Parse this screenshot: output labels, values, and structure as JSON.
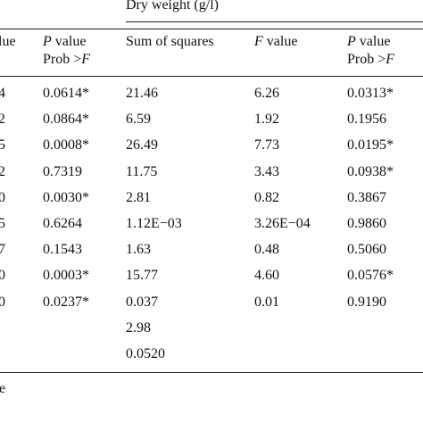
{
  "group_header": "Dry weight (g/l)",
  "columns": {
    "c0": {
      "l1": "lue"
    },
    "c1": {
      "l1_italic": "P",
      "l1_rest": " value",
      "l2": "Prob >",
      "l2_italic": "F"
    },
    "c2": {
      "l1": "Sum of squares"
    },
    "c3": {
      "l1_italic": "F",
      "l1_rest": " value"
    },
    "c4": {
      "l1_italic": "P",
      "l1_rest": " value",
      "l2": "Prob >",
      "l2_italic": "F"
    }
  },
  "rows": [
    [
      "4",
      "0.0614*",
      "21.46",
      "6.26",
      "0.0313*"
    ],
    [
      "2",
      "0.0864*",
      "6.59",
      "1.92",
      "0.1956"
    ],
    [
      "5",
      "0.0008*",
      "26.49",
      "7.73",
      "0.0195*"
    ],
    [
      "2",
      "0.7319",
      "11.75",
      "3.43",
      "0.0938*"
    ],
    [
      "0",
      "0.0030*",
      "2.81",
      "0.82",
      "0.3867"
    ],
    [
      "5",
      "0.6264",
      "1.12E−03",
      "3.26E−04",
      "0.9860"
    ],
    [
      "7",
      "0.1543",
      "1.63",
      "0.48",
      "0.5060"
    ],
    [
      "0",
      "0.0003*",
      "15.77",
      "4.60",
      "0.0576*"
    ],
    [
      "0",
      "0.0237*",
      "0.037",
      "0.01",
      "0.9190"
    ],
    [
      "",
      "",
      "2.98",
      "",
      ""
    ],
    [
      "",
      "",
      "0.0520",
      "",
      ""
    ]
  ],
  "footnote": "e"
}
